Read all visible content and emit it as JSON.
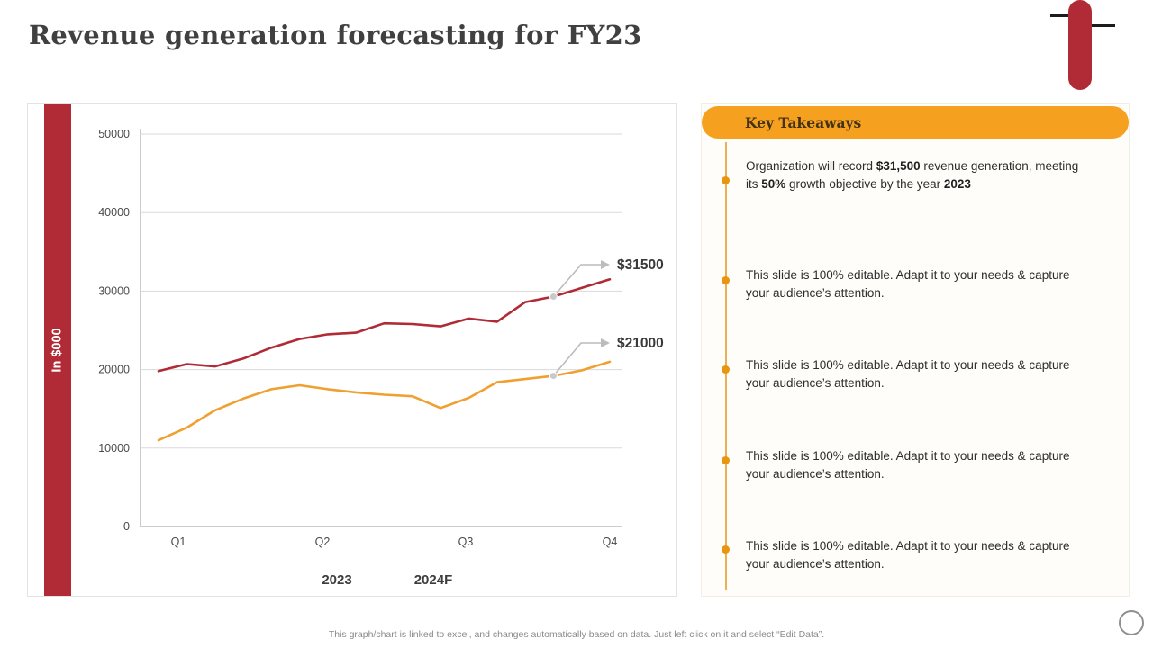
{
  "slide": {
    "title": "Revenue generation forecasting for FY23",
    "footer": "This graph/chart is linked to excel, and changes automatically based on data. Just left click on it and select “Edit Data”.",
    "accent_red": "#B02B35",
    "accent_orange": "#F5A01F"
  },
  "chart_data": {
    "type": "line",
    "title": "",
    "xlabel": "",
    "ylabel": "In $000",
    "ylim": [
      0,
      50000
    ],
    "yticks": [
      0,
      10000,
      20000,
      30000,
      40000,
      50000
    ],
    "grid": true,
    "legend_position": "bottom",
    "categories": [
      "Q1",
      "Q2",
      "Q3",
      "Q4"
    ],
    "series": [
      {
        "name": "2023",
        "color": "#B02B35",
        "values": [
          19800,
          20700,
          20400,
          21400,
          22800,
          23900,
          24500,
          24700,
          25900,
          25800,
          25500,
          26500,
          26100,
          28600,
          29300,
          30400,
          31500
        ]
      },
      {
        "name": "2024F",
        "color": "#F0A030",
        "values": [
          11000,
          12600,
          14800,
          16300,
          17500,
          18000,
          17500,
          17100,
          16800,
          16600,
          15100,
          16400,
          18400,
          18800,
          19200,
          19900,
          21000
        ]
      }
    ],
    "annotations": [
      {
        "text": "$31500",
        "series": "2023"
      },
      {
        "text": "$21000",
        "series": "2024F"
      }
    ]
  },
  "takeaways": {
    "header": "Key Takeaways",
    "items": [
      {
        "segments": [
          "Organization will record ",
          "$31,500",
          " revenue generation, meeting its ",
          "50%",
          " growth objective by the year ",
          "2023"
        ]
      },
      {
        "text": "This slide is 100% editable. Adapt it to your needs & capture your audience’s attention."
      },
      {
        "text": "This slide is 100% editable. Adapt it to your needs & capture your audience’s attention."
      },
      {
        "text": "This slide is 100% editable. Adapt it to your needs & capture your audience’s attention."
      },
      {
        "text": "This slide is 100% editable. Adapt it to your needs & capture your audience’s attention."
      }
    ]
  }
}
